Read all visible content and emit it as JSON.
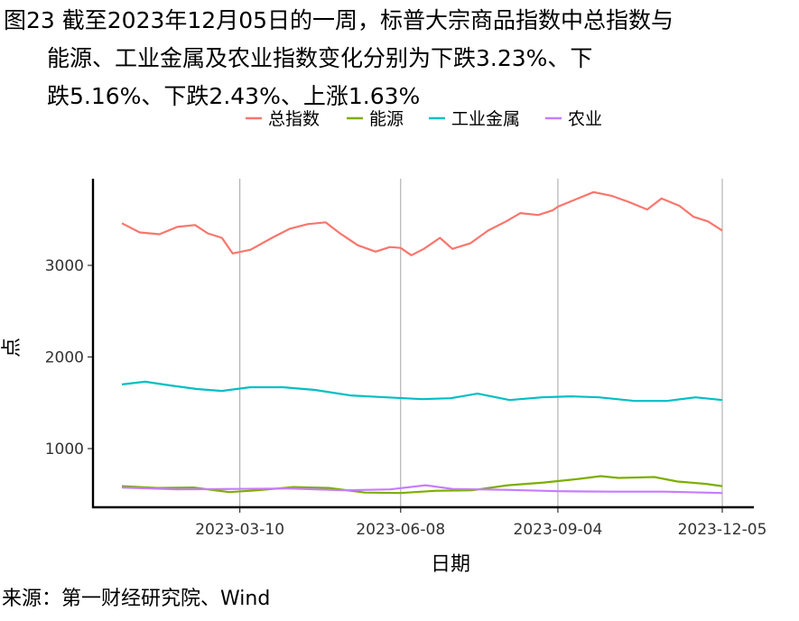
{
  "title_lines": [
    "图23  截至2023年12月05日的一周，标普大宗商品指数中总指数与",
    "能源、工业金属及农业指数变化分别为下跌3.23%、下",
    "跌5.16%、下跌2.43%、上涨1.63%"
  ],
  "source": "来源：第一财经研究院、Wind",
  "chart_data": {
    "type": "line",
    "xlabel": "日期",
    "ylabel": "点",
    "x_ticks": [
      "2023-03-10",
      "2023-06-08",
      "2023-09-04",
      "2023-12-05"
    ],
    "x_range": [
      "2023-01-03",
      "2023-12-05"
    ],
    "y_ticks": [
      1000,
      2000,
      3000
    ],
    "ylim": [
      360,
      3900
    ],
    "grid": "vertical major lines only",
    "legend_position": "top",
    "series": [
      {
        "name": "总指数",
        "color": "#F8766D",
        "points": [
          [
            "2023-01-03",
            3460
          ],
          [
            "2023-01-13",
            3360
          ],
          [
            "2023-01-24",
            3340
          ],
          [
            "2023-02-03",
            3420
          ],
          [
            "2023-02-13",
            3440
          ],
          [
            "2023-02-20",
            3350
          ],
          [
            "2023-02-28",
            3300
          ],
          [
            "2023-03-06",
            3130
          ],
          [
            "2023-03-16",
            3170
          ],
          [
            "2023-03-28",
            3300
          ],
          [
            "2023-04-07",
            3400
          ],
          [
            "2023-04-17",
            3450
          ],
          [
            "2023-04-27",
            3470
          ],
          [
            "2023-05-05",
            3350
          ],
          [
            "2023-05-15",
            3220
          ],
          [
            "2023-05-25",
            3150
          ],
          [
            "2023-06-02",
            3200
          ],
          [
            "2023-06-08",
            3190
          ],
          [
            "2023-06-14",
            3110
          ],
          [
            "2023-06-21",
            3180
          ],
          [
            "2023-06-30",
            3300
          ],
          [
            "2023-07-07",
            3180
          ],
          [
            "2023-07-17",
            3240
          ],
          [
            "2023-07-27",
            3380
          ],
          [
            "2023-08-06",
            3480
          ],
          [
            "2023-08-14",
            3570
          ],
          [
            "2023-08-24",
            3550
          ],
          [
            "2023-09-01",
            3600
          ],
          [
            "2023-09-04",
            3640
          ],
          [
            "2023-09-14",
            3720
          ],
          [
            "2023-09-24",
            3800
          ],
          [
            "2023-10-04",
            3760
          ],
          [
            "2023-10-14",
            3690
          ],
          [
            "2023-10-24",
            3610
          ],
          [
            "2023-11-01",
            3730
          ],
          [
            "2023-11-11",
            3650
          ],
          [
            "2023-11-19",
            3530
          ],
          [
            "2023-11-27",
            3480
          ],
          [
            "2023-12-05",
            3380
          ]
        ]
      },
      {
        "name": "能源",
        "color": "#7CAE00",
        "points": [
          [
            "2023-01-03",
            590
          ],
          [
            "2023-01-23",
            570
          ],
          [
            "2023-02-12",
            575
          ],
          [
            "2023-03-04",
            525
          ],
          [
            "2023-03-20",
            545
          ],
          [
            "2023-04-09",
            580
          ],
          [
            "2023-04-29",
            570
          ],
          [
            "2023-05-19",
            520
          ],
          [
            "2023-06-08",
            515
          ],
          [
            "2023-06-28",
            540
          ],
          [
            "2023-07-18",
            545
          ],
          [
            "2023-08-07",
            600
          ],
          [
            "2023-08-27",
            630
          ],
          [
            "2023-09-16",
            670
          ],
          [
            "2023-09-28",
            700
          ],
          [
            "2023-10-08",
            680
          ],
          [
            "2023-10-28",
            690
          ],
          [
            "2023-11-10",
            640
          ],
          [
            "2023-11-26",
            615
          ],
          [
            "2023-12-05",
            590
          ]
        ]
      },
      {
        "name": "工业金属",
        "color": "#00BFC4",
        "points": [
          [
            "2023-01-03",
            1700
          ],
          [
            "2023-01-16",
            1730
          ],
          [
            "2023-01-30",
            1690
          ],
          [
            "2023-02-14",
            1650
          ],
          [
            "2023-02-28",
            1630
          ],
          [
            "2023-03-16",
            1670
          ],
          [
            "2023-04-03",
            1670
          ],
          [
            "2023-04-21",
            1640
          ],
          [
            "2023-05-11",
            1580
          ],
          [
            "2023-05-31",
            1560
          ],
          [
            "2023-06-20",
            1540
          ],
          [
            "2023-07-06",
            1550
          ],
          [
            "2023-07-21",
            1600
          ],
          [
            "2023-08-08",
            1530
          ],
          [
            "2023-08-26",
            1560
          ],
          [
            "2023-09-11",
            1570
          ],
          [
            "2023-09-27",
            1560
          ],
          [
            "2023-10-17",
            1520
          ],
          [
            "2023-11-04",
            1520
          ],
          [
            "2023-11-20",
            1560
          ],
          [
            "2023-12-05",
            1530
          ]
        ]
      },
      {
        "name": "农业",
        "color": "#C77CFF",
        "points": [
          [
            "2023-01-03",
            575
          ],
          [
            "2023-02-03",
            555
          ],
          [
            "2023-03-06",
            560
          ],
          [
            "2023-04-06",
            565
          ],
          [
            "2023-05-07",
            545
          ],
          [
            "2023-06-02",
            555
          ],
          [
            "2023-06-22",
            600
          ],
          [
            "2023-07-07",
            560
          ],
          [
            "2023-08-06",
            550
          ],
          [
            "2023-09-04",
            535
          ],
          [
            "2023-10-04",
            530
          ],
          [
            "2023-11-03",
            530
          ],
          [
            "2023-12-05",
            515
          ]
        ]
      }
    ]
  }
}
